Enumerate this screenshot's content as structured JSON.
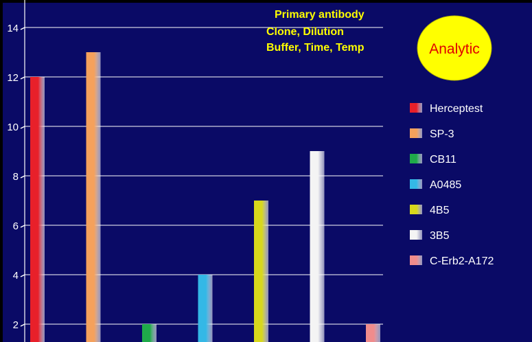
{
  "chart_data": {
    "type": "bar",
    "categories": [
      "Herceptest",
      "SP-3",
      "CB11",
      "A0485",
      "4B5",
      "3B5",
      "C-Erb2-A172"
    ],
    "values": [
      12,
      13,
      2,
      4,
      7,
      9,
      2
    ],
    "ylim": [
      0,
      14
    ],
    "yticks": [
      "2",
      "4",
      "6",
      "8",
      "10",
      "12",
      "14"
    ],
    "grid": true,
    "legend_position": "right",
    "legend": [
      "Herceptest",
      "SP-3",
      "CB11",
      "A0485",
      "4B5",
      "3B5",
      "C-Erb2-A172"
    ],
    "colors": {
      "background": "#0a0a66",
      "frame": "#000000",
      "grid": "#ffffff",
      "series": [
        "#e8202a",
        "#f5a15c",
        "#1faa4a",
        "#34b8e6",
        "#d8d81c",
        "#f4f4f4",
        "#f08c8c"
      ]
    }
  },
  "annotation": {
    "lines": [
      "Primary antibody",
      "Clone, Dilution",
      "Buffer, Time, Temp"
    ],
    "color": "#ffff00"
  },
  "badge": {
    "label": "Analytic",
    "fill": "#ffff00",
    "text_color": "#e00000"
  }
}
